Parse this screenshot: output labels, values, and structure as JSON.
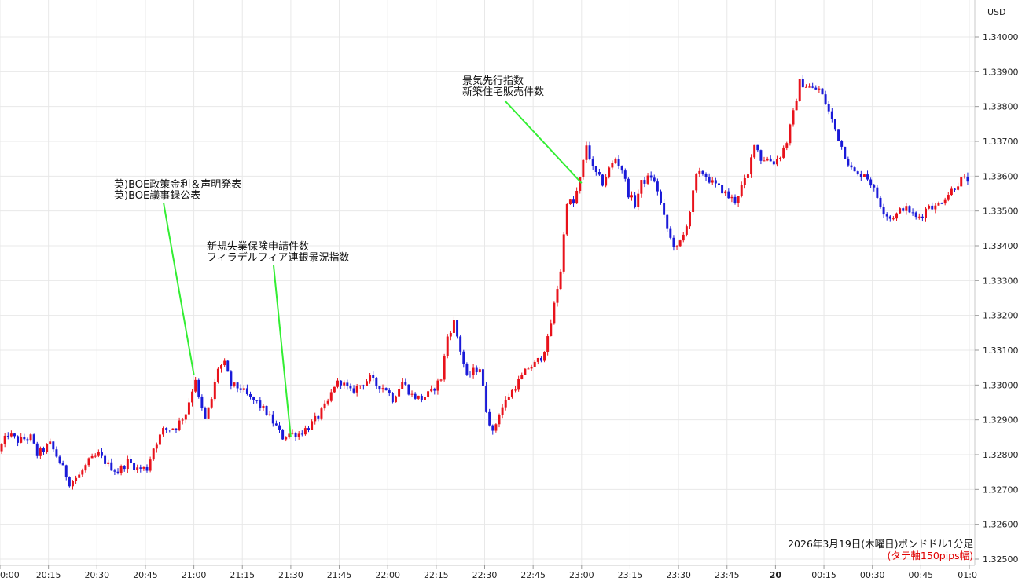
{
  "chart_data": {
    "type": "candlestick",
    "currency_label": "USD",
    "ylim": [
      1.325,
      1.3403
    ],
    "y_ticks": [
      "1.34000",
      "1.33900",
      "1.33800",
      "1.33700",
      "1.33600",
      "1.33500",
      "1.33400",
      "1.33300",
      "1.33200",
      "1.33100",
      "1.33000",
      "1.32900",
      "1.32800",
      "1.32700",
      "1.32600",
      "1.32500"
    ],
    "x_ticks": [
      "0:00",
      "20:15",
      "20:30",
      "20:45",
      "21:00",
      "21:15",
      "21:30",
      "21:45",
      "22:00",
      "22:15",
      "22:30",
      "22:45",
      "23:00",
      "23:15",
      "23:30",
      "23:45",
      "20",
      "00:15",
      "00:30",
      "00:45",
      "01:0"
    ],
    "x_tick_minutes": [
      0,
      15,
      30,
      45,
      60,
      75,
      90,
      105,
      120,
      135,
      150,
      165,
      180,
      195,
      210,
      225,
      240,
      255,
      270,
      285,
      300
    ],
    "caption": "2026年3月19日(木曜日)ポンドドル1分足",
    "caption_note": "(タテ軸150pips幅)",
    "colors": {
      "up": "#e8121b",
      "down": "#1a1ad8",
      "annotation_line": "#33ee33",
      "grid": "#e8e8e8"
    },
    "annotations": [
      {
        "lines": [
          "英)BOE政策金利＆声明発表",
          "英)BOE議事録公表"
        ],
        "minute": 60,
        "price": 1.3303
      },
      {
        "lines": [
          "新規失業保険申請件数",
          "フィラデルフィア連銀景況指数"
        ],
        "minute": 90,
        "price": 1.3285
      },
      {
        "lines": [
          "景気先行指数",
          "新築住宅販売件数"
        ],
        "minute": 180,
        "price": 1.3358
      }
    ],
    "price_path": [
      [
        0,
        1.3281
      ],
      [
        3,
        1.3286
      ],
      [
        6,
        1.3284
      ],
      [
        10,
        1.3285
      ],
      [
        12,
        1.328
      ],
      [
        16,
        1.3283
      ],
      [
        19,
        1.3278
      ],
      [
        22,
        1.3272
      ],
      [
        25,
        1.3274
      ],
      [
        28,
        1.3278
      ],
      [
        31,
        1.328
      ],
      [
        34,
        1.3277
      ],
      [
        37,
        1.3275
      ],
      [
        40,
        1.3278
      ],
      [
        43,
        1.3276
      ],
      [
        46,
        1.3276
      ],
      [
        48,
        1.3282
      ],
      [
        51,
        1.3287
      ],
      [
        55,
        1.3288
      ],
      [
        58,
        1.3292
      ],
      [
        61,
        1.3302
      ],
      [
        62,
        1.3296
      ],
      [
        64,
        1.329
      ],
      [
        66,
        1.3296
      ],
      [
        68,
        1.3305
      ],
      [
        70,
        1.3306
      ],
      [
        72,
        1.33
      ],
      [
        75,
        1.3299
      ],
      [
        78,
        1.3296
      ],
      [
        80,
        1.3295
      ],
      [
        83,
        1.3292
      ],
      [
        86,
        1.3288
      ],
      [
        88,
        1.3285
      ],
      [
        90,
        1.3286
      ],
      [
        93,
        1.3286
      ],
      [
        96,
        1.3288
      ],
      [
        99,
        1.3291
      ],
      [
        102,
        1.3295
      ],
      [
        104,
        1.33
      ],
      [
        106,
        1.3301
      ],
      [
        109,
        1.3298
      ],
      [
        112,
        1.33
      ],
      [
        115,
        1.3302
      ],
      [
        117,
        1.33
      ],
      [
        120,
        1.3299
      ],
      [
        122,
        1.3296
      ],
      [
        125,
        1.3301
      ],
      [
        128,
        1.3297
      ],
      [
        131,
        1.3296
      ],
      [
        134,
        1.3298
      ],
      [
        137,
        1.3302
      ],
      [
        139,
        1.3314
      ],
      [
        141,
        1.3318
      ],
      [
        143,
        1.331
      ],
      [
        145,
        1.3302
      ],
      [
        147,
        1.3304
      ],
      [
        149,
        1.3305
      ],
      [
        151,
        1.3293
      ],
      [
        153,
        1.3286
      ],
      [
        155,
        1.3292
      ],
      [
        158,
        1.3297
      ],
      [
        161,
        1.3301
      ],
      [
        164,
        1.3305
      ],
      [
        166,
        1.3306
      ],
      [
        168,
        1.3308
      ],
      [
        170,
        1.3313
      ],
      [
        172,
        1.3323
      ],
      [
        174,
        1.3333
      ],
      [
        176,
        1.3353
      ],
      [
        178,
        1.3352
      ],
      [
        180,
        1.3359
      ],
      [
        182,
        1.3369
      ],
      [
        184,
        1.3362
      ],
      [
        187,
        1.3358
      ],
      [
        189,
        1.3362
      ],
      [
        191,
        1.3365
      ],
      [
        193,
        1.3362
      ],
      [
        195,
        1.3355
      ],
      [
        197,
        1.3352
      ],
      [
        199,
        1.3358
      ],
      [
        202,
        1.336
      ],
      [
        204,
        1.3356
      ],
      [
        206,
        1.3348
      ],
      [
        208,
        1.3342
      ],
      [
        210,
        1.3339
      ],
      [
        212,
        1.3343
      ],
      [
        214,
        1.335
      ],
      [
        216,
        1.336
      ],
      [
        218,
        1.3361
      ],
      [
        221,
        1.3358
      ],
      [
        224,
        1.3356
      ],
      [
        226,
        1.3354
      ],
      [
        228,
        1.3353
      ],
      [
        230,
        1.3357
      ],
      [
        232,
        1.336
      ],
      [
        234,
        1.337
      ],
      [
        236,
        1.3365
      ],
      [
        238,
        1.3365
      ],
      [
        240,
        1.3364
      ],
      [
        242,
        1.3366
      ],
      [
        244,
        1.337
      ],
      [
        246,
        1.3378
      ],
      [
        248,
        1.3387
      ],
      [
        250,
        1.3386
      ],
      [
        252,
        1.3385
      ],
      [
        254,
        1.3385
      ],
      [
        256,
        1.3381
      ],
      [
        258,
        1.3376
      ],
      [
        260,
        1.3371
      ],
      [
        262,
        1.3366
      ],
      [
        264,
        1.3362
      ],
      [
        266,
        1.336
      ],
      [
        268,
        1.3361
      ],
      [
        270,
        1.3358
      ],
      [
        272,
        1.3354
      ],
      [
        274,
        1.335
      ],
      [
        276,
        1.3348
      ],
      [
        278,
        1.3349
      ],
      [
        280,
        1.3351
      ],
      [
        282,
        1.335
      ],
      [
        284,
        1.3348
      ],
      [
        286,
        1.3349
      ],
      [
        288,
        1.3352
      ],
      [
        290,
        1.3351
      ],
      [
        292,
        1.3353
      ],
      [
        294,
        1.3355
      ],
      [
        296,
        1.3357
      ],
      [
        298,
        1.3359
      ],
      [
        299,
        1.3359
      ]
    ]
  }
}
